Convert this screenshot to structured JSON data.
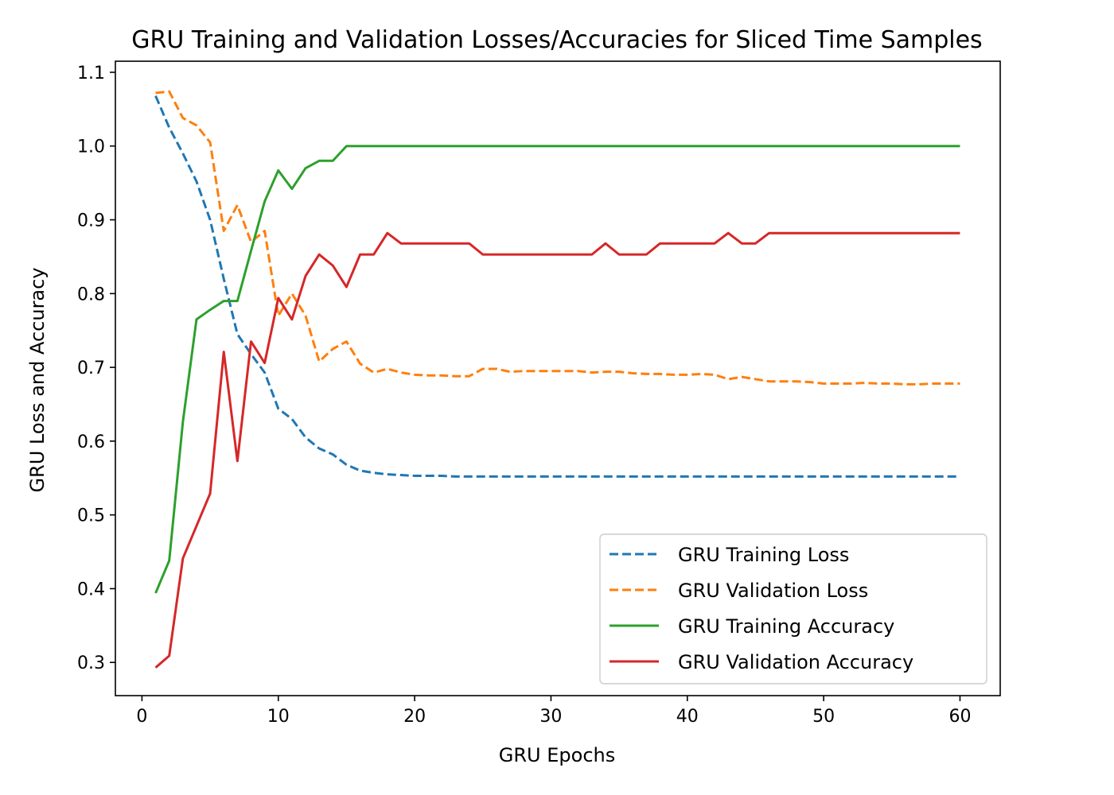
{
  "chart_data": {
    "type": "line",
    "title": "GRU Training and Validation Losses/Accuracies for Sliced Time Samples",
    "xlabel": "GRU Epochs",
    "ylabel": "GRU Loss and Accuracy",
    "xlim": [
      -1.95,
      62.95
    ],
    "ylim": [
      0.255,
      1.115
    ],
    "xticks": [
      0,
      10,
      20,
      30,
      40,
      50,
      60
    ],
    "yticks": [
      0.3,
      0.4,
      0.5,
      0.6,
      0.7,
      0.8,
      0.9,
      1.0,
      1.1
    ],
    "xtick_labels": [
      "0",
      "10",
      "20",
      "30",
      "40",
      "50",
      "60"
    ],
    "ytick_labels": [
      "0.3",
      "0.4",
      "0.5",
      "0.6",
      "0.7",
      "0.8",
      "0.9",
      "1.0",
      "1.1"
    ],
    "grid": false,
    "legend_position": "bottom-right",
    "x": [
      1,
      2,
      3,
      4,
      5,
      6,
      7,
      8,
      9,
      10,
      11,
      12,
      13,
      14,
      15,
      16,
      17,
      18,
      19,
      20,
      21,
      22,
      23,
      24,
      25,
      26,
      27,
      28,
      29,
      30,
      31,
      32,
      33,
      34,
      35,
      36,
      37,
      38,
      39,
      40,
      41,
      42,
      43,
      44,
      45,
      46,
      47,
      48,
      49,
      50,
      51,
      52,
      53,
      54,
      55,
      56,
      57,
      58,
      59,
      60
    ],
    "series": [
      {
        "name": "GRU Training Loss",
        "color": "#1f77b4",
        "style": "dashed",
        "values": [
          1.068,
          1.025,
          0.99,
          0.952,
          0.9,
          0.82,
          0.745,
          0.718,
          0.693,
          0.644,
          0.63,
          0.605,
          0.59,
          0.582,
          0.568,
          0.56,
          0.557,
          0.555,
          0.554,
          0.553,
          0.553,
          0.553,
          0.552,
          0.552,
          0.552,
          0.552,
          0.552,
          0.552,
          0.552,
          0.552,
          0.552,
          0.552,
          0.552,
          0.552,
          0.552,
          0.552,
          0.552,
          0.552,
          0.552,
          0.552,
          0.552,
          0.552,
          0.552,
          0.552,
          0.552,
          0.552,
          0.552,
          0.552,
          0.552,
          0.552,
          0.552,
          0.552,
          0.552,
          0.552,
          0.552,
          0.552,
          0.552,
          0.552,
          0.552,
          0.552
        ]
      },
      {
        "name": "GRU Validation Loss",
        "color": "#ff7f0e",
        "style": "dashed",
        "values": [
          1.072,
          1.074,
          1.038,
          1.028,
          1.005,
          0.885,
          0.92,
          0.87,
          0.885,
          0.77,
          0.8,
          0.77,
          0.708,
          0.725,
          0.735,
          0.705,
          0.693,
          0.698,
          0.693,
          0.69,
          0.689,
          0.689,
          0.688,
          0.688,
          0.698,
          0.698,
          0.694,
          0.695,
          0.695,
          0.695,
          0.695,
          0.695,
          0.693,
          0.694,
          0.694,
          0.692,
          0.691,
          0.691,
          0.69,
          0.69,
          0.691,
          0.69,
          0.684,
          0.687,
          0.684,
          0.681,
          0.681,
          0.681,
          0.68,
          0.678,
          0.678,
          0.678,
          0.679,
          0.678,
          0.678,
          0.677,
          0.677,
          0.678,
          0.678,
          0.678
        ]
      },
      {
        "name": "GRU Training Accuracy",
        "color": "#2ca02c",
        "style": "solid",
        "values": [
          0.394,
          0.438,
          0.626,
          0.765,
          0.778,
          0.79,
          0.79,
          0.858,
          0.925,
          0.967,
          0.942,
          0.97,
          0.98,
          0.98,
          1.0,
          1.0,
          1.0,
          1.0,
          1.0,
          1.0,
          1.0,
          1.0,
          1.0,
          1.0,
          1.0,
          1.0,
          1.0,
          1.0,
          1.0,
          1.0,
          1.0,
          1.0,
          1.0,
          1.0,
          1.0,
          1.0,
          1.0,
          1.0,
          1.0,
          1.0,
          1.0,
          1.0,
          1.0,
          1.0,
          1.0,
          1.0,
          1.0,
          1.0,
          1.0,
          1.0,
          1.0,
          1.0,
          1.0,
          1.0,
          1.0,
          1.0,
          1.0,
          1.0,
          1.0,
          1.0
        ]
      },
      {
        "name": "GRU Validation Accuracy",
        "color": "#d62728",
        "style": "solid",
        "values": [
          0.293,
          0.309,
          0.441,
          0.485,
          0.529,
          0.721,
          0.573,
          0.735,
          0.706,
          0.794,
          0.765,
          0.824,
          0.853,
          0.838,
          0.809,
          0.853,
          0.853,
          0.882,
          0.868,
          0.868,
          0.868,
          0.868,
          0.868,
          0.868,
          0.853,
          0.853,
          0.853,
          0.853,
          0.853,
          0.853,
          0.853,
          0.853,
          0.853,
          0.868,
          0.853,
          0.853,
          0.853,
          0.868,
          0.868,
          0.868,
          0.868,
          0.868,
          0.882,
          0.868,
          0.868,
          0.882,
          0.882,
          0.882,
          0.882,
          0.882,
          0.882,
          0.882,
          0.882,
          0.882,
          0.882,
          0.882,
          0.882,
          0.882,
          0.882,
          0.882
        ]
      }
    ]
  }
}
